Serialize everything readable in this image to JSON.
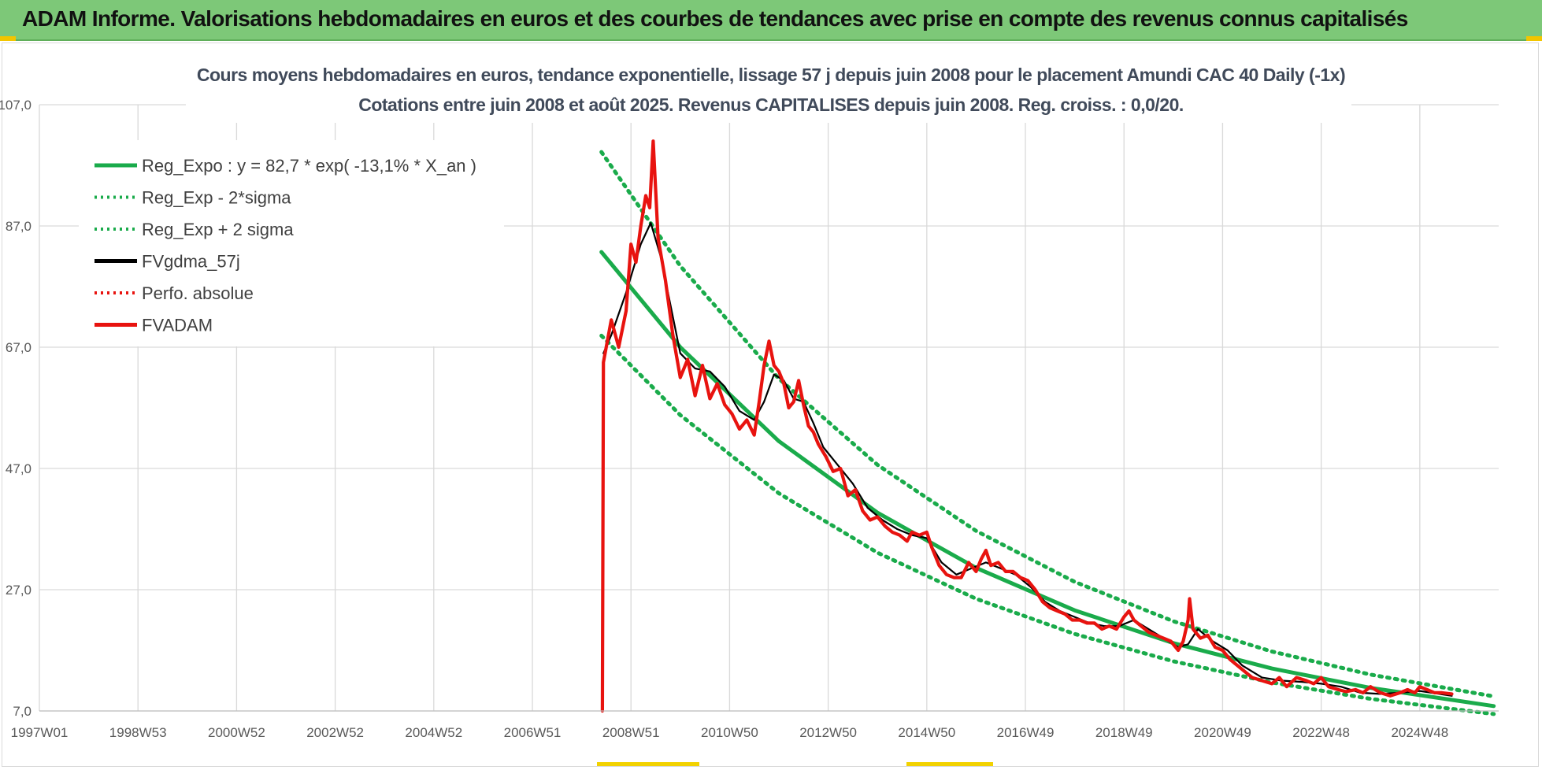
{
  "header": {
    "title": "ADAM Informe. Valorisations hebdomadaires en euros et des courbes de tendances avec prise en compte des revenus connus capitalisés"
  },
  "colors": {
    "banner": "#7dc878",
    "reg_expo": "#1aab4b",
    "fvgdma": "#000000",
    "fvadam": "#e8130f",
    "grid": "#d9d9d9"
  },
  "chart_data": {
    "type": "line",
    "title": "Cours moyens hebdomadaires en euros, tendance exponentielle, lissage 57 j depuis juin 2008 pour le placement Amundi CAC 40 Daily (-1x)",
    "subtitle": "Cotations entre juin 2008 et août 2025. Revenus CAPITALISES depuis juin 2008. Reg. croiss. : 0,0/20.",
    "xlabel": "",
    "ylabel": "",
    "x_ticks": [
      "1997W01",
      "1998W53",
      "2000W52",
      "2002W52",
      "2004W52",
      "2006W51",
      "2008W51",
      "2010W50",
      "2012W50",
      "2014W50",
      "2016W49",
      "2018W49",
      "2020W49",
      "2022W48",
      "2024W48"
    ],
    "x_tick_years": [
      1997.0,
      1999.0,
      2001.0,
      2003.0,
      2005.0,
      2007.0,
      2009.0,
      2011.0,
      2013.0,
      2015.0,
      2017.0,
      2019.0,
      2021.0,
      2023.0,
      2025.0
    ],
    "x_range_years": [
      1997.0,
      2026.6
    ],
    "y_ticks": [
      "107,0",
      "87,0",
      "67,0",
      "47,0",
      "27,0",
      "7,0"
    ],
    "ylim": [
      7,
      107
    ],
    "grid": true,
    "legend_position": "top-left",
    "regression": {
      "start_year": 2008.4,
      "a": 82.7,
      "rate": -0.131,
      "sigma_factor": 1.2
    },
    "series": [
      {
        "name": "Reg_Expo : y = 82,7 * exp( -13,1% *  X_an )",
        "style": "solid-green",
        "points": [
          [
            2008.4,
            82.7
          ],
          [
            2010.0,
            67.0
          ],
          [
            2012.0,
            51.5
          ],
          [
            2014.0,
            39.7
          ],
          [
            2016.0,
            30.6
          ],
          [
            2018.0,
            23.6
          ],
          [
            2020.0,
            18.2
          ],
          [
            2022.0,
            14.0
          ],
          [
            2024.0,
            10.8
          ],
          [
            2026.5,
            7.8
          ]
        ]
      },
      {
        "name": "Reg_Exp - 2*sigma",
        "style": "dotted-green",
        "points": [
          [
            2008.4,
            68.9
          ],
          [
            2010.0,
            55.8
          ],
          [
            2012.0,
            42.9
          ],
          [
            2014.0,
            33.1
          ],
          [
            2016.0,
            25.5
          ],
          [
            2018.0,
            19.7
          ],
          [
            2020.0,
            15.2
          ],
          [
            2022.0,
            11.7
          ],
          [
            2024.0,
            9.0
          ],
          [
            2026.5,
            6.5
          ]
        ]
      },
      {
        "name": "Reg_Exp + 2 sigma",
        "style": "dotted-green",
        "points": [
          [
            2008.4,
            99.2
          ],
          [
            2010.0,
            80.4
          ],
          [
            2012.0,
            61.8
          ],
          [
            2014.0,
            47.6
          ],
          [
            2016.0,
            36.7
          ],
          [
            2018.0,
            28.3
          ],
          [
            2020.0,
            21.8
          ],
          [
            2022.0,
            16.8
          ],
          [
            2024.0,
            13.0
          ],
          [
            2026.5,
            9.4
          ]
        ]
      },
      {
        "name": "FVgdma_57j",
        "style": "solid-black",
        "points": [
          [
            2008.44,
            66.0
          ],
          [
            2008.6,
            69.0
          ],
          [
            2008.9,
            76.0
          ],
          [
            2009.2,
            84.0
          ],
          [
            2009.4,
            87.5
          ],
          [
            2009.6,
            82.0
          ],
          [
            2009.8,
            74.0
          ],
          [
            2010.0,
            66.0
          ],
          [
            2010.3,
            63.5
          ],
          [
            2010.6,
            63.0
          ],
          [
            2010.9,
            60.5
          ],
          [
            2011.2,
            56.5
          ],
          [
            2011.5,
            55.0
          ],
          [
            2011.7,
            58.0
          ],
          [
            2011.9,
            62.5
          ],
          [
            2012.1,
            61.5
          ],
          [
            2012.3,
            58.5
          ],
          [
            2012.5,
            58.0
          ],
          [
            2012.7,
            54.5
          ],
          [
            2012.9,
            50.5
          ],
          [
            2013.2,
            47.5
          ],
          [
            2013.5,
            44.5
          ],
          [
            2013.8,
            40.5
          ],
          [
            2014.1,
            38.5
          ],
          [
            2014.4,
            37.0
          ],
          [
            2014.7,
            36.0
          ],
          [
            2015.0,
            35.5
          ],
          [
            2015.3,
            31.5
          ],
          [
            2015.6,
            29.5
          ],
          [
            2015.9,
            30.5
          ],
          [
            2016.2,
            31.5
          ],
          [
            2016.5,
            30.5
          ],
          [
            2016.8,
            29.5
          ],
          [
            2017.1,
            27.5
          ],
          [
            2017.4,
            25.0
          ],
          [
            2017.7,
            23.5
          ],
          [
            2018.0,
            22.5
          ],
          [
            2018.3,
            21.5
          ],
          [
            2018.6,
            21.0
          ],
          [
            2018.9,
            21.0
          ],
          [
            2019.2,
            22.0
          ],
          [
            2019.5,
            20.5
          ],
          [
            2019.8,
            19.0
          ],
          [
            2020.1,
            17.5
          ],
          [
            2020.3,
            18.0
          ],
          [
            2020.5,
            20.5
          ],
          [
            2020.8,
            18.5
          ],
          [
            2021.1,
            17.0
          ],
          [
            2021.4,
            14.5
          ],
          [
            2021.8,
            12.5
          ],
          [
            2022.2,
            12.0
          ],
          [
            2022.6,
            11.8
          ],
          [
            2023.0,
            11.5
          ],
          [
            2023.4,
            11.0
          ],
          [
            2023.8,
            10.0
          ],
          [
            2024.2,
            9.8
          ],
          [
            2024.6,
            10.0
          ],
          [
            2025.0,
            10.3
          ],
          [
            2025.4,
            9.8
          ],
          [
            2025.65,
            9.5
          ]
        ]
      },
      {
        "name": "Perfo. absolue",
        "style": "dotted-red",
        "points": []
      },
      {
        "name": "FVADAM",
        "style": "solid-red",
        "points": [
          [
            2008.42,
            7.0
          ],
          [
            2008.44,
            64.5
          ],
          [
            2008.6,
            71.5
          ],
          [
            2008.75,
            67.0
          ],
          [
            2008.9,
            73.0
          ],
          [
            2009.0,
            84.0
          ],
          [
            2009.1,
            81.0
          ],
          [
            2009.2,
            87.0
          ],
          [
            2009.3,
            92.0
          ],
          [
            2009.38,
            90.0
          ],
          [
            2009.45,
            101.0
          ],
          [
            2009.55,
            85.0
          ],
          [
            2009.7,
            78.0
          ],
          [
            2009.85,
            69.0
          ],
          [
            2010.0,
            62.0
          ],
          [
            2010.15,
            65.0
          ],
          [
            2010.3,
            59.0
          ],
          [
            2010.45,
            64.0
          ],
          [
            2010.6,
            58.5
          ],
          [
            2010.75,
            61.0
          ],
          [
            2010.9,
            57.5
          ],
          [
            2011.05,
            56.0
          ],
          [
            2011.2,
            53.5
          ],
          [
            2011.35,
            55.0
          ],
          [
            2011.5,
            52.5
          ],
          [
            2011.6,
            58.0
          ],
          [
            2011.7,
            64.0
          ],
          [
            2011.8,
            68.0
          ],
          [
            2011.9,
            64.0
          ],
          [
            2012.0,
            63.0
          ],
          [
            2012.1,
            61.0
          ],
          [
            2012.2,
            57.0
          ],
          [
            2012.3,
            58.0
          ],
          [
            2012.4,
            61.5
          ],
          [
            2012.5,
            57.5
          ],
          [
            2012.6,
            54.0
          ],
          [
            2012.7,
            53.0
          ],
          [
            2012.8,
            51.0
          ],
          [
            2012.95,
            49.0
          ],
          [
            2013.1,
            46.5
          ],
          [
            2013.25,
            47.0
          ],
          [
            2013.4,
            42.5
          ],
          [
            2013.55,
            43.5
          ],
          [
            2013.7,
            40.0
          ],
          [
            2013.85,
            38.5
          ],
          [
            2014.0,
            39.0
          ],
          [
            2014.15,
            37.5
          ],
          [
            2014.3,
            36.5
          ],
          [
            2014.45,
            36.0
          ],
          [
            2014.6,
            35.0
          ],
          [
            2014.7,
            36.5
          ],
          [
            2014.85,
            36.0
          ],
          [
            2015.0,
            36.5
          ],
          [
            2015.1,
            34.0
          ],
          [
            2015.25,
            31.0
          ],
          [
            2015.4,
            29.5
          ],
          [
            2015.55,
            29.0
          ],
          [
            2015.7,
            29.0
          ],
          [
            2015.85,
            31.5
          ],
          [
            2016.0,
            30.0
          ],
          [
            2016.1,
            32.0
          ],
          [
            2016.2,
            33.5
          ],
          [
            2016.3,
            31.0
          ],
          [
            2016.45,
            31.5
          ],
          [
            2016.6,
            30.0
          ],
          [
            2016.75,
            30.0
          ],
          [
            2016.9,
            29.0
          ],
          [
            2017.05,
            28.5
          ],
          [
            2017.2,
            27.0
          ],
          [
            2017.35,
            25.0
          ],
          [
            2017.5,
            24.0
          ],
          [
            2017.65,
            23.5
          ],
          [
            2017.8,
            23.0
          ],
          [
            2017.95,
            22.0
          ],
          [
            2018.1,
            22.0
          ],
          [
            2018.25,
            21.5
          ],
          [
            2018.4,
            21.5
          ],
          [
            2018.55,
            20.5
          ],
          [
            2018.7,
            21.0
          ],
          [
            2018.85,
            20.5
          ],
          [
            2019.0,
            22.5
          ],
          [
            2019.1,
            23.5
          ],
          [
            2019.2,
            22.0
          ],
          [
            2019.35,
            21.0
          ],
          [
            2019.5,
            20.0
          ],
          [
            2019.65,
            19.5
          ],
          [
            2019.8,
            19.0
          ],
          [
            2019.95,
            18.5
          ],
          [
            2020.1,
            17.0
          ],
          [
            2020.2,
            18.5
          ],
          [
            2020.3,
            22.0
          ],
          [
            2020.33,
            25.5
          ],
          [
            2020.4,
            20.5
          ],
          [
            2020.55,
            19.0
          ],
          [
            2020.7,
            19.5
          ],
          [
            2020.85,
            17.5
          ],
          [
            2021.0,
            17.0
          ],
          [
            2021.15,
            15.5
          ],
          [
            2021.3,
            14.5
          ],
          [
            2021.45,
            13.5
          ],
          [
            2021.6,
            12.5
          ],
          [
            2021.8,
            12.0
          ],
          [
            2022.0,
            11.5
          ],
          [
            2022.15,
            12.5
          ],
          [
            2022.3,
            11.0
          ],
          [
            2022.5,
            12.5
          ],
          [
            2022.7,
            12.0
          ],
          [
            2022.85,
            11.5
          ],
          [
            2023.0,
            12.5
          ],
          [
            2023.15,
            11.0
          ],
          [
            2023.35,
            10.5
          ],
          [
            2023.5,
            10.2
          ],
          [
            2023.7,
            10.5
          ],
          [
            2023.85,
            10.0
          ],
          [
            2024.0,
            11.0
          ],
          [
            2024.2,
            10.0
          ],
          [
            2024.4,
            9.5
          ],
          [
            2024.6,
            10.0
          ],
          [
            2024.75,
            10.5
          ],
          [
            2024.9,
            10.0
          ],
          [
            2025.0,
            11.0
          ],
          [
            2025.15,
            10.5
          ],
          [
            2025.3,
            10.0
          ],
          [
            2025.45,
            10.0
          ],
          [
            2025.65,
            9.8
          ]
        ]
      }
    ]
  }
}
